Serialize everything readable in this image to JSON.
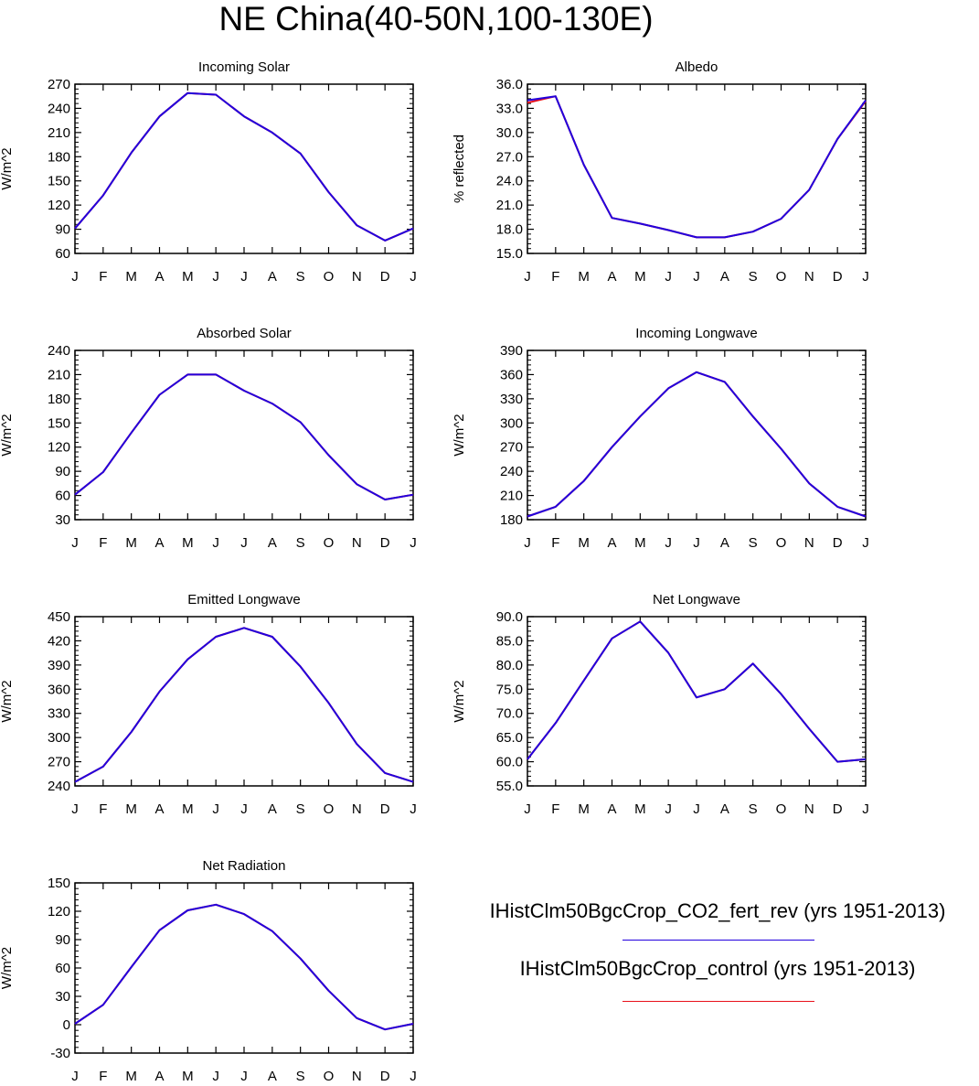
{
  "title": "NE China(40-50N,100-130E)",
  "colors": {
    "series_fert": "#2200dd",
    "series_control": "#e8101a",
    "axis": "#000000"
  },
  "legend": [
    {
      "label": "IHistClm50BgcCrop_CO2_fert_rev (yrs 1951-2013)",
      "color": "#2200dd"
    },
    {
      "label": "IHistClm50BgcCrop_control (yrs 1951-2013)",
      "color": "#e8101a"
    }
  ],
  "chart_data": [
    {
      "id": "incoming-solar",
      "type": "line",
      "title": "Incoming Solar",
      "ylabel": "W/m^2",
      "categories": [
        "J",
        "F",
        "M",
        "A",
        "M",
        "J",
        "J",
        "A",
        "S",
        "O",
        "N",
        "D",
        "J"
      ],
      "ylim": [
        60,
        270
      ],
      "yticks": [
        "60",
        "90",
        "120",
        "150",
        "180",
        "210",
        "240",
        "270"
      ],
      "series": [
        {
          "values": [
            91,
            132,
            185,
            230,
            259,
            257,
            230,
            210,
            184,
            136,
            95,
            76,
            91
          ]
        },
        {
          "values": [
            91,
            132,
            185,
            230,
            259,
            257,
            230,
            210,
            184,
            136,
            95,
            76,
            91
          ]
        }
      ]
    },
    {
      "id": "albedo",
      "type": "line",
      "title": "Albedo",
      "ylabel": "% reflected",
      "categories": [
        "J",
        "F",
        "M",
        "A",
        "M",
        "J",
        "J",
        "A",
        "S",
        "O",
        "N",
        "D",
        "J"
      ],
      "ylim": [
        15.0,
        36.0
      ],
      "yticks": [
        "15.0",
        "18.0",
        "21.0",
        "24.0",
        "27.0",
        "30.0",
        "33.0",
        "36.0"
      ],
      "series": [
        {
          "values": [
            34.0,
            34.5,
            26.0,
            19.4,
            18.7,
            17.9,
            17.0,
            17.0,
            17.7,
            19.3,
            22.9,
            29.2,
            34.0
          ]
        },
        {
          "values": [
            33.7,
            34.5,
            26.0,
            19.4,
            18.7,
            17.9,
            17.0,
            17.0,
            17.7,
            19.3,
            22.9,
            29.2,
            33.9
          ]
        }
      ]
    },
    {
      "id": "absorbed-solar",
      "type": "line",
      "title": "Absorbed Solar",
      "ylabel": "W/m^2",
      "categories": [
        "J",
        "F",
        "M",
        "A",
        "M",
        "J",
        "J",
        "A",
        "S",
        "O",
        "N",
        "D",
        "J"
      ],
      "ylim": [
        30,
        240
      ],
      "yticks": [
        "30",
        "60",
        "90",
        "120",
        "150",
        "180",
        "210",
        "240"
      ],
      "series": [
        {
          "values": [
            61,
            89,
            138,
            185,
            210,
            210,
            190,
            174,
            151,
            110,
            74,
            55,
            61
          ]
        },
        {
          "values": [
            61,
            89,
            138,
            185,
            210,
            210,
            190,
            174,
            151,
            110,
            74,
            55,
            61
          ]
        }
      ]
    },
    {
      "id": "incoming-longwave",
      "type": "line",
      "title": "Incoming Longwave",
      "ylabel": "W/m^2",
      "categories": [
        "J",
        "F",
        "M",
        "A",
        "M",
        "J",
        "J",
        "A",
        "S",
        "O",
        "N",
        "D",
        "J"
      ],
      "ylim": [
        180,
        390
      ],
      "yticks": [
        "180",
        "210",
        "240",
        "270",
        "300",
        "330",
        "360",
        "390"
      ],
      "series": [
        {
          "values": [
            184,
            196,
            228,
            270,
            308,
            343,
            363,
            351,
            308,
            268,
            225,
            196,
            184
          ]
        },
        {
          "values": [
            184,
            196,
            228,
            270,
            308,
            343,
            363,
            351,
            308,
            268,
            225,
            196,
            184
          ]
        }
      ]
    },
    {
      "id": "emitted-longwave",
      "type": "line",
      "title": "Emitted Longwave",
      "ylabel": "W/m^2",
      "categories": [
        "J",
        "F",
        "M",
        "A",
        "M",
        "J",
        "J",
        "A",
        "S",
        "O",
        "N",
        "D",
        "J"
      ],
      "ylim": [
        240,
        450
      ],
      "yticks": [
        "240",
        "270",
        "300",
        "330",
        "360",
        "390",
        "420",
        "450"
      ],
      "series": [
        {
          "values": [
            245,
            264,
            307,
            357,
            397,
            425,
            436,
            425,
            388,
            343,
            292,
            256,
            245
          ]
        },
        {
          "values": [
            245,
            264,
            307,
            357,
            397,
            425,
            436,
            425,
            388,
            343,
            292,
            256,
            245
          ]
        }
      ]
    },
    {
      "id": "net-longwave",
      "type": "line",
      "title": "Net Longwave",
      "ylabel": "W/m^2",
      "categories": [
        "J",
        "F",
        "M",
        "A",
        "M",
        "J",
        "J",
        "A",
        "S",
        "O",
        "N",
        "D",
        "J"
      ],
      "ylim": [
        55.0,
        90.0
      ],
      "yticks": [
        "55.0",
        "60.0",
        "65.0",
        "70.0",
        "75.0",
        "80.0",
        "85.0",
        "90.0"
      ],
      "series": [
        {
          "values": [
            60.5,
            68.0,
            76.8,
            85.5,
            89.0,
            82.5,
            73.3,
            75.0,
            80.3,
            74.0,
            66.8,
            60.0,
            60.5
          ]
        },
        {
          "values": [
            60.5,
            68.0,
            76.8,
            85.5,
            89.0,
            82.5,
            73.3,
            75.0,
            80.3,
            74.0,
            66.8,
            60.0,
            60.5
          ]
        }
      ]
    },
    {
      "id": "net-radiation",
      "type": "line",
      "title": "Net Radiation",
      "ylabel": "W/m^2",
      "categories": [
        "J",
        "F",
        "M",
        "A",
        "M",
        "J",
        "J",
        "A",
        "S",
        "O",
        "N",
        "D",
        "J"
      ],
      "ylim": [
        -30,
        150
      ],
      "yticks": [
        "-30",
        "0",
        "30",
        "60",
        "90",
        "120",
        "150"
      ],
      "series": [
        {
          "values": [
            1,
            21,
            61,
            100,
            121,
            127,
            117,
            99,
            70,
            36,
            7,
            -5,
            1
          ]
        },
        {
          "values": [
            1,
            21,
            61,
            100,
            121,
            127,
            117,
            99,
            70,
            36,
            7,
            -5,
            1
          ]
        }
      ]
    }
  ]
}
